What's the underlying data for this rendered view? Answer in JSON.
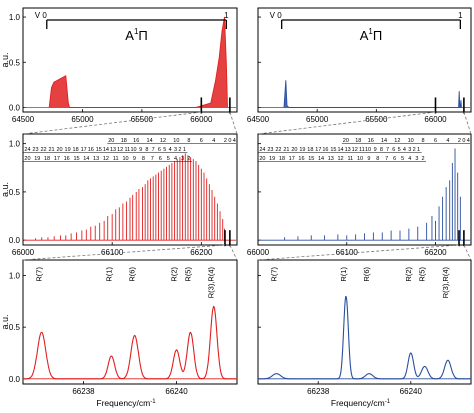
{
  "colors": {
    "red": "#e02020",
    "blue": "#2a4f9e",
    "zoom": "#777777"
  },
  "chart_data": [
    {
      "id": "tl",
      "type": "line",
      "series_color": "red",
      "xlabel": "",
      "ylabel": "a.u.",
      "xlim": [
        64500,
        66300
      ],
      "ylim": [
        -0.05,
        1.1
      ],
      "xticks": [
        "64500",
        "65000",
        "65500",
        "66000"
      ],
      "xtick_values": [
        64500,
        65000,
        65500,
        66000
      ],
      "yticks": [
        "0.0",
        "0.5",
        "1.0"
      ],
      "ytick_values": [
        0,
        0.5,
        1
      ],
      "series": [
        {
          "values": [
            [
              64720,
              0.0
            ],
            [
              64740,
              0.22
            ],
            [
              64760,
              0.28
            ],
            [
              64790,
              0.3
            ],
            [
              64830,
              0.33
            ],
            [
              64860,
              0.35
            ],
            [
              64880,
              0.06
            ],
            [
              64890,
              0.0
            ],
            [
              65950,
              0.0
            ],
            [
              66080,
              0.05
            ],
            [
              66120,
              0.3
            ],
            [
              66150,
              0.55
            ],
            [
              66175,
              0.85
            ],
            [
              66195,
              1.0
            ],
            [
              66210,
              0.5
            ],
            [
              66220,
              0.0
            ]
          ]
        }
      ],
      "annotation": {
        "band_label": "A",
        "superscript": "1",
        "symbol": "Π",
        "v_left": "V 0",
        "v_right": "1",
        "bracket": [
          64700,
          66210
        ]
      },
      "zoom_range": [
        66000,
        66240
      ]
    },
    {
      "id": "tr",
      "type": "line",
      "series_color": "blue",
      "xlabel": "",
      "ylabel": "",
      "xlim": [
        64500,
        66300
      ],
      "ylim": [
        -0.05,
        1.1
      ],
      "xticks": [
        "64500",
        "65000",
        "65500",
        "66000"
      ],
      "xtick_values": [
        64500,
        65000,
        65500,
        66000
      ],
      "yticks": [],
      "ytick_values": [
        0,
        0.5,
        1
      ],
      "series": [
        {
          "values": [
            [
              64720,
              0.0
            ],
            [
              64735,
              0.3
            ],
            [
              64745,
              0.02
            ],
            [
              64760,
              0.0
            ],
            [
              66195,
              0.0
            ],
            [
              66200,
              0.18
            ],
            [
              66205,
              0.0
            ],
            [
              66210,
              0.0
            ],
            [
              66215,
              0.08
            ],
            [
              66220,
              0.0
            ]
          ]
        }
      ],
      "annotation": {
        "band_label": "A",
        "superscript": "1",
        "symbol": "Π",
        "v_left": "V 0",
        "v_right": "1",
        "bracket": [
          64700,
          66210
        ]
      },
      "zoom_range": [
        66000,
        66240
      ]
    },
    {
      "id": "ml",
      "type": "bar",
      "series_color": "red",
      "xlabel": "",
      "ylabel": "a.u.",
      "xlim": [
        66000,
        66240
      ],
      "ylim": [
        -0.05,
        1.1
      ],
      "xticks": [
        "66000",
        "66100",
        "66200"
      ],
      "xtick_values": [
        66000,
        66100,
        66200
      ],
      "yticks": [
        "0.0",
        "0.5",
        "1.0"
      ],
      "ytick_values": [
        0,
        0.5,
        1
      ],
      "lines": [
        [
          66014,
          0.02
        ],
        [
          66021,
          0.03
        ],
        [
          66028,
          0.03
        ],
        [
          66035,
          0.04
        ],
        [
          66042,
          0.05
        ],
        [
          66048,
          0.05
        ],
        [
          66054,
          0.07
        ],
        [
          66060,
          0.08
        ],
        [
          66066,
          0.1
        ],
        [
          66071,
          0.11
        ],
        [
          66076,
          0.14
        ],
        [
          66081,
          0.15
        ],
        [
          66086,
          0.18
        ],
        [
          66091,
          0.2
        ],
        [
          66095,
          0.25
        ],
        [
          66100,
          0.27
        ],
        [
          66104,
          0.32
        ],
        [
          66108,
          0.34
        ],
        [
          66112,
          0.38
        ],
        [
          66116,
          0.4
        ],
        [
          66120,
          0.44
        ],
        [
          66123,
          0.47
        ],
        [
          66127,
          0.5
        ],
        [
          66130,
          0.53
        ],
        [
          66134,
          0.55
        ],
        [
          66137,
          0.58
        ],
        [
          66140,
          0.62
        ],
        [
          66143,
          0.64
        ],
        [
          66146,
          0.66
        ],
        [
          66149,
          0.68
        ],
        [
          66152,
          0.7
        ],
        [
          66155,
          0.72
        ],
        [
          66158,
          0.74
        ],
        [
          66161,
          0.76
        ],
        [
          66164,
          0.78
        ],
        [
          66167,
          0.8
        ],
        [
          66170,
          0.82
        ],
        [
          66173,
          0.84
        ],
        [
          66176,
          0.86
        ],
        [
          66179,
          0.88
        ],
        [
          66182,
          0.9
        ],
        [
          66185,
          0.88
        ],
        [
          66188,
          0.86
        ],
        [
          66191,
          0.84
        ],
        [
          66194,
          0.82
        ],
        [
          66197,
          0.78
        ],
        [
          66200,
          0.74
        ],
        [
          66203,
          0.7
        ],
        [
          66206,
          0.64
        ],
        [
          66209,
          0.58
        ],
        [
          66212,
          0.52
        ],
        [
          66215,
          0.45
        ],
        [
          66218,
          0.38
        ],
        [
          66221,
          0.3
        ],
        [
          66224,
          0.22
        ],
        [
          66226,
          0.12
        ]
      ],
      "ladders": [
        {
          "labels": [
            "20",
            "18",
            "16",
            "14",
            "12",
            "10",
            "8",
            "6",
            "4",
            "2",
            "0",
            "4"
          ],
          "x": [
            66099,
            66113,
            66127,
            66142,
            66157,
            66172,
            66186,
            66200,
            66214,
            66227,
            66232,
            66237
          ]
        },
        {
          "labels": [
            "24",
            "23",
            "22",
            "21",
            "20",
            "19",
            "18",
            "17",
            "16",
            "15",
            "14",
            "13",
            "12",
            "11",
            "10",
            "9",
            "8",
            "7",
            "6",
            "5",
            "4",
            "3",
            "2",
            "1"
          ],
          "x": [
            66005,
            66014,
            66023,
            66032,
            66041,
            66050,
            66059,
            66068,
            66076,
            66085,
            66093,
            66101,
            66109,
            66117,
            66124,
            66132,
            66139,
            66146,
            66153,
            66159,
            66165,
            66171,
            66176,
            66181
          ]
        },
        {
          "labels": [
            "20",
            "19",
            "18",
            "17",
            "16",
            "15",
            "14",
            "13",
            "12",
            "11",
            "10",
            "9",
            "8",
            "7",
            "6",
            "5",
            "4",
            "3",
            "2"
          ],
          "x": [
            66005,
            66016,
            66027,
            66038,
            66049,
            66060,
            66071,
            66082,
            66093,
            66104,
            66115,
            66125,
            66135,
            66145,
            66154,
            66163,
            66171,
            66179,
            66186
          ]
        }
      ],
      "zoom_range": [
        66226.5,
        66232
      ]
    },
    {
      "id": "mr",
      "type": "bar",
      "series_color": "blue",
      "xlabel": "",
      "ylabel": "",
      "xlim": [
        66000,
        66240
      ],
      "ylim": [
        -0.05,
        1.1
      ],
      "xticks": [
        "66000",
        "66100",
        "66200"
      ],
      "xtick_values": [
        66000,
        66100,
        66200
      ],
      "yticks": [],
      "ytick_values": [
        0,
        0.5,
        1
      ],
      "lines": [
        [
          66030,
          0.03
        ],
        [
          66045,
          0.04
        ],
        [
          66060,
          0.05
        ],
        [
          66075,
          0.05
        ],
        [
          66090,
          0.06
        ],
        [
          66100,
          0.05
        ],
        [
          66110,
          0.06
        ],
        [
          66120,
          0.07
        ],
        [
          66130,
          0.08
        ],
        [
          66140,
          0.08
        ],
        [
          66150,
          0.1
        ],
        [
          66160,
          0.1
        ],
        [
          66170,
          0.12
        ],
        [
          66180,
          0.14
        ],
        [
          66190,
          0.18
        ],
        [
          66196,
          0.25
        ],
        [
          66200,
          0.2
        ],
        [
          66204,
          0.35
        ],
        [
          66208,
          0.45
        ],
        [
          66212,
          0.55
        ],
        [
          66216,
          0.62
        ],
        [
          66219,
          0.8
        ],
        [
          66222,
          0.95
        ],
        [
          66225,
          0.7
        ],
        [
          66228,
          0.45
        ]
      ],
      "ladders": [
        {
          "labels": [
            "20",
            "18",
            "16",
            "14",
            "12",
            "10",
            "8",
            "6",
            "4",
            "2",
            "0",
            "4"
          ],
          "x": [
            66099,
            66113,
            66127,
            66142,
            66157,
            66172,
            66186,
            66200,
            66214,
            66227,
            66232,
            66237
          ]
        },
        {
          "labels": [
            "24",
            "23",
            "22",
            "21",
            "20",
            "19",
            "18",
            "17",
            "16",
            "15",
            "14",
            "13",
            "12",
            "11",
            "10",
            "9",
            "8",
            "7",
            "6",
            "5",
            "4",
            "3",
            "2",
            "1"
          ],
          "x": [
            66005,
            66014,
            66023,
            66032,
            66041,
            66050,
            66059,
            66068,
            66076,
            66085,
            66093,
            66101,
            66109,
            66117,
            66124,
            66132,
            66139,
            66146,
            66153,
            66159,
            66165,
            66171,
            66176,
            66181
          ]
        },
        {
          "labels": [
            "20",
            "19",
            "18",
            "17",
            "16",
            "15",
            "14",
            "13",
            "12",
            "11",
            "10",
            "9",
            "8",
            "7",
            "6",
            "5",
            "4",
            "3",
            "2"
          ],
          "x": [
            66005,
            66016,
            66027,
            66038,
            66049,
            66060,
            66071,
            66082,
            66093,
            66104,
            66115,
            66125,
            66135,
            66145,
            66154,
            66163,
            66171,
            66179,
            66186
          ]
        }
      ],
      "zoom_range": [
        66226.5,
        66232
      ]
    },
    {
      "id": "bl",
      "type": "line",
      "series_color": "red",
      "xlabel": "Frequency/cm",
      "xlabel_sup": "-1",
      "ylabel": "a.u.",
      "xlim": [
        66236.7,
        66241.3
      ],
      "ylim": [
        -0.05,
        1.15
      ],
      "xticks": [
        "66238",
        "66240"
      ],
      "xtick_values": [
        66238,
        66240
      ],
      "yticks": [
        "0.0",
        "0.5",
        "1.0"
      ],
      "ytick_values": [
        0,
        0.5,
        1
      ],
      "peaks": [
        [
          66237.1,
          0.45,
          0.09
        ],
        [
          66238.6,
          0.22,
          0.07
        ],
        [
          66239.1,
          0.42,
          0.08
        ],
        [
          66240.0,
          0.28,
          0.07
        ],
        [
          66240.3,
          0.45,
          0.07
        ],
        [
          66240.8,
          0.7,
          0.07
        ]
      ],
      "peak_labels": [
        {
          "text": "R(7)",
          "x": 66237.1
        },
        {
          "text": "R(1)",
          "x": 66238.6
        },
        {
          "text": "R(6)",
          "x": 66239.1
        },
        {
          "text": "R(2)",
          "x": 66240.0
        },
        {
          "text": "R(5)",
          "x": 66240.3
        },
        {
          "text": "R(3),R(4)",
          "x": 66240.8
        }
      ]
    },
    {
      "id": "br",
      "type": "line",
      "series_color": "blue",
      "xlabel": "Frequency/cm",
      "xlabel_sup": "-1",
      "ylabel": "",
      "xlim": [
        66236.7,
        66241.3
      ],
      "ylim": [
        -0.05,
        1.15
      ],
      "xticks": [
        "66238",
        "66240"
      ],
      "xtick_values": [
        66238,
        66240
      ],
      "yticks": [],
      "ytick_values": [
        0,
        0.5,
        1
      ],
      "peaks": [
        [
          66237.1,
          0.05,
          0.09
        ],
        [
          66238.6,
          0.8,
          0.05
        ],
        [
          66239.1,
          0.05,
          0.08
        ],
        [
          66240.0,
          0.25,
          0.06
        ],
        [
          66240.3,
          0.12,
          0.07
        ],
        [
          66240.8,
          0.18,
          0.07
        ]
      ],
      "peak_labels": [
        {
          "text": "R(7)",
          "x": 66237.1
        },
        {
          "text": "R(1)",
          "x": 66238.6
        },
        {
          "text": "R(6)",
          "x": 66239.1
        },
        {
          "text": "R(2)",
          "x": 66240.0
        },
        {
          "text": "R(5)",
          "x": 66240.3
        },
        {
          "text": "R(3),R(4)",
          "x": 66240.8
        }
      ]
    }
  ]
}
